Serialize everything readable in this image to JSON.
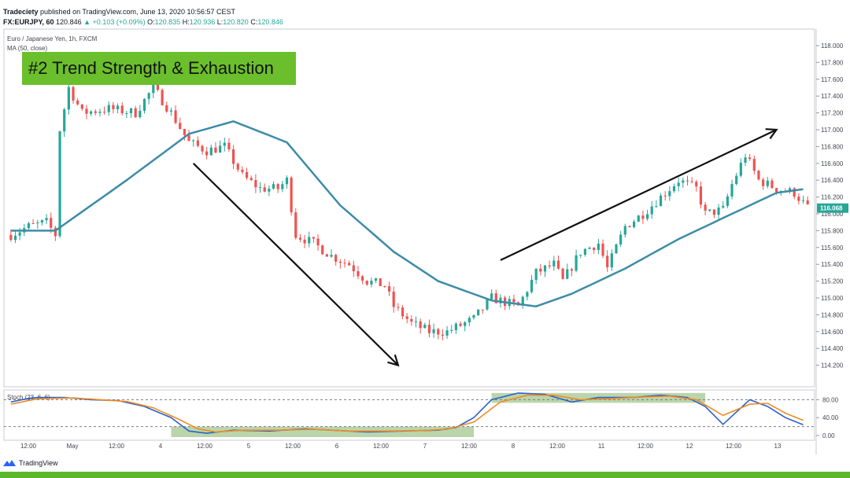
{
  "header": {
    "publisher": "Tradeciety",
    "published_text": "published on TradingView.com, June 13, 2020 10:56:57 CEST",
    "symbol": "FX:EURJPY, 60",
    "last": "120.846",
    "change": "+0.103 (+0.09%)",
    "o_label": "O:",
    "o": "120.835",
    "h_label": "H:",
    "h": "120.936",
    "l_label": "L:",
    "l": "120.820",
    "c_label": "C:",
    "c": "120.846"
  },
  "banner": {
    "text": "#2 Trend Strength  & Exhaustion"
  },
  "brand": {
    "name": "TradingView",
    "icon": "tradingview-logo-icon"
  },
  "colors": {
    "up": "#26a69a",
    "down": "#ef5350",
    "ma": "#3d8ca7",
    "stoch_k": "#2a62c9",
    "stoch_d": "#f08a24",
    "zone": "#aacb96",
    "banner": "#6bbf2c",
    "footer": "#5cb82b",
    "price_tag": "#26a69a"
  },
  "chart_data": [
    {
      "type": "candlestick",
      "title": "Euro / Japanese Yen, 1h, FXCM",
      "indicator": "MA (50, close)",
      "current_price": "116.068",
      "ylim": [
        114.0,
        118.2
      ],
      "y_ticks": [
        "118.000",
        "117.800",
        "117.600",
        "117.400",
        "117.200",
        "117.000",
        "116.800",
        "116.600",
        "116.400",
        "116.200",
        "116.000",
        "115.800",
        "115.600",
        "115.400",
        "115.200",
        "115.000",
        "114.800",
        "114.600",
        "114.400",
        "114.200"
      ],
      "x_tick_labels": [
        "12:00",
        "May",
        "12:00",
        "4",
        "12:00",
        "5",
        "12:00",
        "6",
        "12:00",
        "7",
        "12:00",
        "8",
        "12:00",
        "11",
        "12:00",
        "12",
        "12:00",
        "13"
      ],
      "bar_count": 180,
      "close_path": [
        [
          0,
          115.75
        ],
        [
          4,
          115.85
        ],
        [
          8,
          115.9
        ],
        [
          10,
          115.75
        ],
        [
          11,
          117.0
        ],
        [
          13,
          117.5
        ],
        [
          16,
          117.2
        ],
        [
          22,
          117.25
        ],
        [
          28,
          117.2
        ],
        [
          32,
          117.5
        ],
        [
          36,
          117.2
        ],
        [
          40,
          116.85
        ],
        [
          44,
          116.75
        ],
        [
          48,
          116.8
        ],
        [
          52,
          116.45
        ],
        [
          56,
          116.3
        ],
        [
          60,
          116.3
        ],
        [
          62,
          116.4
        ],
        [
          64,
          115.75
        ],
        [
          68,
          115.65
        ],
        [
          72,
          115.5
        ],
        [
          76,
          115.4
        ],
        [
          80,
          115.2
        ],
        [
          84,
          115.15
        ],
        [
          86,
          114.9
        ],
        [
          90,
          114.7
        ],
        [
          94,
          114.6
        ],
        [
          98,
          114.6
        ],
        [
          104,
          114.75
        ],
        [
          108,
          115.0
        ],
        [
          114,
          114.9
        ],
        [
          118,
          115.3
        ],
        [
          122,
          115.4
        ],
        [
          124,
          115.2
        ],
        [
          128,
          115.55
        ],
        [
          132,
          115.65
        ],
        [
          134,
          115.35
        ],
        [
          138,
          115.85
        ],
        [
          142,
          116.0
        ],
        [
          146,
          116.2
        ],
        [
          150,
          116.4
        ],
        [
          154,
          116.3
        ],
        [
          156,
          116.0
        ],
        [
          160,
          116.05
        ],
        [
          162,
          116.35
        ],
        [
          165,
          116.7
        ],
        [
          168,
          116.4
        ],
        [
          172,
          116.3
        ],
        [
          176,
          116.25
        ],
        [
          179,
          116.07
        ]
      ],
      "ma_path": [
        [
          0,
          115.8
        ],
        [
          10,
          115.8
        ],
        [
          26,
          116.4
        ],
        [
          40,
          116.95
        ],
        [
          50,
          117.1
        ],
        [
          62,
          116.85
        ],
        [
          74,
          116.1
        ],
        [
          86,
          115.55
        ],
        [
          96,
          115.2
        ],
        [
          108,
          114.97
        ],
        [
          118,
          114.9
        ],
        [
          126,
          115.05
        ],
        [
          138,
          115.35
        ],
        [
          150,
          115.7
        ],
        [
          162,
          116.0
        ],
        [
          172,
          116.25
        ],
        [
          179,
          116.3
        ]
      ],
      "annotations": [
        {
          "type": "arrow",
          "from": [
            41,
            116.6
          ],
          "to": [
            87,
            114.2
          ]
        },
        {
          "type": "arrow",
          "from": [
            110,
            115.45
          ],
          "to": [
            172,
            117.0
          ]
        }
      ]
    },
    {
      "type": "line",
      "title": "Stoch (23, 6, 6)",
      "ylim": [
        0,
        100
      ],
      "y_ticks": [
        "80.00",
        "40.00",
        "0.00"
      ],
      "levels": [
        80,
        20
      ],
      "series": [
        {
          "name": "%K",
          "values": [
            [
              0,
              75
            ],
            [
              5,
              85
            ],
            [
              12,
              85
            ],
            [
              18,
              80
            ],
            [
              24,
              78
            ],
            [
              30,
              65
            ],
            [
              36,
              40
            ],
            [
              40,
              10
            ],
            [
              44,
              5
            ],
            [
              50,
              12
            ],
            [
              58,
              10
            ],
            [
              66,
              15
            ],
            [
              72,
              12
            ],
            [
              80,
              8
            ],
            [
              88,
              10
            ],
            [
              96,
              12
            ],
            [
              100,
              18
            ],
            [
              104,
              40
            ],
            [
              108,
              80
            ],
            [
              114,
              95
            ],
            [
              120,
              92
            ],
            [
              126,
              75
            ],
            [
              132,
              85
            ],
            [
              140,
              85
            ],
            [
              146,
              90
            ],
            [
              152,
              85
            ],
            [
              156,
              65
            ],
            [
              160,
              25
            ],
            [
              166,
              80
            ],
            [
              170,
              65
            ],
            [
              174,
              40
            ],
            [
              179,
              20
            ]
          ]
        },
        {
          "name": "%D",
          "values": [
            [
              0,
              70
            ],
            [
              6,
              82
            ],
            [
              14,
              84
            ],
            [
              20,
              80
            ],
            [
              26,
              76
            ],
            [
              32,
              62
            ],
            [
              38,
              35
            ],
            [
              42,
              15
            ],
            [
              46,
              8
            ],
            [
              52,
              12
            ],
            [
              60,
              12
            ],
            [
              68,
              14
            ],
            [
              76,
              10
            ],
            [
              84,
              10
            ],
            [
              92,
              11
            ],
            [
              98,
              14
            ],
            [
              104,
              30
            ],
            [
              110,
              75
            ],
            [
              116,
              90
            ],
            [
              122,
              90
            ],
            [
              128,
              80
            ],
            [
              134,
              82
            ],
            [
              142,
              86
            ],
            [
              148,
              88
            ],
            [
              154,
              80
            ],
            [
              160,
              45
            ],
            [
              166,
              70
            ],
            [
              170,
              72
            ],
            [
              174,
              50
            ],
            [
              179,
              30
            ]
          ]
        }
      ],
      "zones": [
        [
          36,
          104
        ],
        [
          108,
          156
        ]
      ]
    }
  ]
}
